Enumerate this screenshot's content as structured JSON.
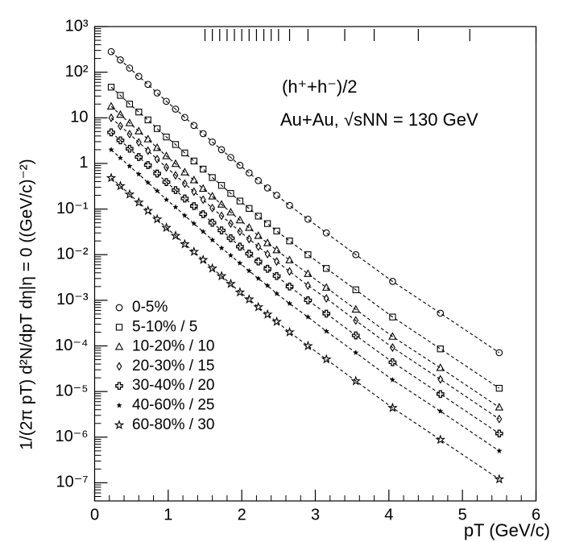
{
  "chart_data": {
    "type": "scatter",
    "xlabel": "pT (GeV/c)",
    "ylabel": "1/(2π pT) d²N/dpT dη|η = 0 ((GeV/c)⁻²)",
    "annotations": [
      "(h⁺+h⁻)/2",
      "Au+Au, √sNN = 130 GeV"
    ],
    "log_y": true,
    "line_style": "dashed",
    "xlim": [
      0,
      6
    ],
    "xticks": [
      0,
      1,
      2,
      3,
      4,
      5,
      6
    ],
    "ylim": [
      4e-08,
      1000
    ],
    "yticks": [
      {
        "value": 1e-07,
        "label": "10⁻⁷"
      },
      {
        "value": 1e-06,
        "label": "10⁻⁶"
      },
      {
        "value": 1e-05,
        "label": "10⁻⁵"
      },
      {
        "value": 0.0001,
        "label": "10⁻⁴"
      },
      {
        "value": 0.001,
        "label": "10⁻³"
      },
      {
        "value": 0.01,
        "label": "10⁻²"
      },
      {
        "value": 0.1,
        "label": "10⁻¹"
      },
      1,
      10,
      {
        "value": 100,
        "label": "10²"
      },
      {
        "value": 1000,
        "label": "10³"
      }
    ],
    "rug": [
      1.5,
      1.6,
      1.7,
      1.8,
      1.9,
      2.0,
      2.1,
      2.2,
      2.3,
      2.4,
      2.5,
      2.65,
      2.9,
      3.4,
      3.8,
      4.4,
      5.1,
      6.0
    ],
    "x": [
      0.225,
      0.35,
      0.475,
      0.6,
      0.725,
      0.85,
      0.975,
      1.1,
      1.225,
      1.35,
      1.475,
      1.6,
      1.725,
      1.85,
      1.975,
      2.1,
      2.225,
      2.35,
      2.475,
      2.65,
      2.9,
      3.15,
      3.55,
      4.05,
      4.7,
      5.5
    ],
    "series": [
      {
        "name": "0-5%",
        "marker": "circle",
        "color": "#000000",
        "values": [
          282,
          186,
          123,
          81,
          54,
          35,
          23,
          15.5,
          10.2,
          6.8,
          4.5,
          2.95,
          2.0,
          1.35,
          0.91,
          0.62,
          0.42,
          0.29,
          0.2,
          0.12,
          0.06,
          0.03,
          0.01,
          0.0026,
          0.00052,
          7.1e-05
        ]
      },
      {
        "name": "5-10% / 5",
        "marker": "square",
        "color": "#000000",
        "values": [
          47,
          31,
          20,
          13.4,
          9,
          5.8,
          3.8,
          2.6,
          1.7,
          1.13,
          0.75,
          0.49,
          0.33,
          0.22,
          0.15,
          0.103,
          0.07,
          0.048,
          0.033,
          0.02,
          0.01,
          0.005,
          0.0017,
          0.00043,
          8.6e-05,
          1.18e-05
        ]
      },
      {
        "name": "10-20% / 10",
        "marker": "triangle",
        "color": "#000000",
        "values": [
          17.8,
          11.7,
          7.7,
          5.1,
          3.4,
          2.2,
          1.45,
          0.98,
          0.64,
          0.43,
          0.28,
          0.19,
          0.126,
          0.085,
          0.057,
          0.039,
          0.026,
          0.018,
          0.0126,
          0.0076,
          0.0038,
          0.0019,
          0.00063,
          0.00016,
          3.3e-05,
          4.5e-06
        ]
      },
      {
        "name": "20-30% / 15",
        "marker": "diamond",
        "color": "#000000",
        "values": [
          10,
          6.6,
          4.4,
          2.9,
          1.9,
          1.24,
          0.82,
          0.55,
          0.36,
          0.24,
          0.16,
          0.105,
          0.071,
          0.048,
          0.032,
          0.022,
          0.015,
          0.0103,
          0.0071,
          0.0043,
          0.0021,
          0.0011,
          0.00036,
          9.2e-05,
          1.85e-05,
          2.5e-06
        ]
      },
      {
        "name": "30-40% / 20",
        "marker": "cross",
        "color": "#000000",
        "values": [
          4.8,
          3.2,
          2.1,
          1.38,
          0.92,
          0.6,
          0.39,
          0.26,
          0.17,
          0.116,
          0.077,
          0.05,
          0.034,
          0.023,
          0.015,
          0.0105,
          0.0071,
          0.0049,
          0.0034,
          0.002,
          0.001,
          0.00051,
          0.00017,
          4.4e-05,
          8.8e-06,
          1.2e-06
        ]
      },
      {
        "name": "40-60% / 25",
        "marker": "smallstar",
        "color": "#000000",
        "values": [
          2.0,
          1.32,
          0.87,
          0.58,
          0.38,
          0.25,
          0.16,
          0.11,
          0.072,
          0.048,
          0.032,
          0.021,
          0.014,
          0.0096,
          0.0065,
          0.0044,
          0.003,
          0.0021,
          0.0014,
          0.00085,
          0.00043,
          0.00021,
          7.1e-05,
          1.8e-05,
          3.7e-06,
          5e-07
        ]
      },
      {
        "name": "60-80% / 30",
        "marker": "star",
        "color": "#000000",
        "values": [
          0.48,
          0.32,
          0.21,
          0.14,
          0.092,
          0.06,
          0.039,
          0.026,
          0.017,
          0.0116,
          0.0077,
          0.005,
          0.0034,
          0.0023,
          0.0015,
          0.00105,
          0.00071,
          0.00049,
          0.00034,
          0.0002,
          0.0001,
          5.1e-05,
          1.7e-05,
          4.4e-06,
          8.8e-07,
          1.2e-07
        ]
      }
    ]
  }
}
